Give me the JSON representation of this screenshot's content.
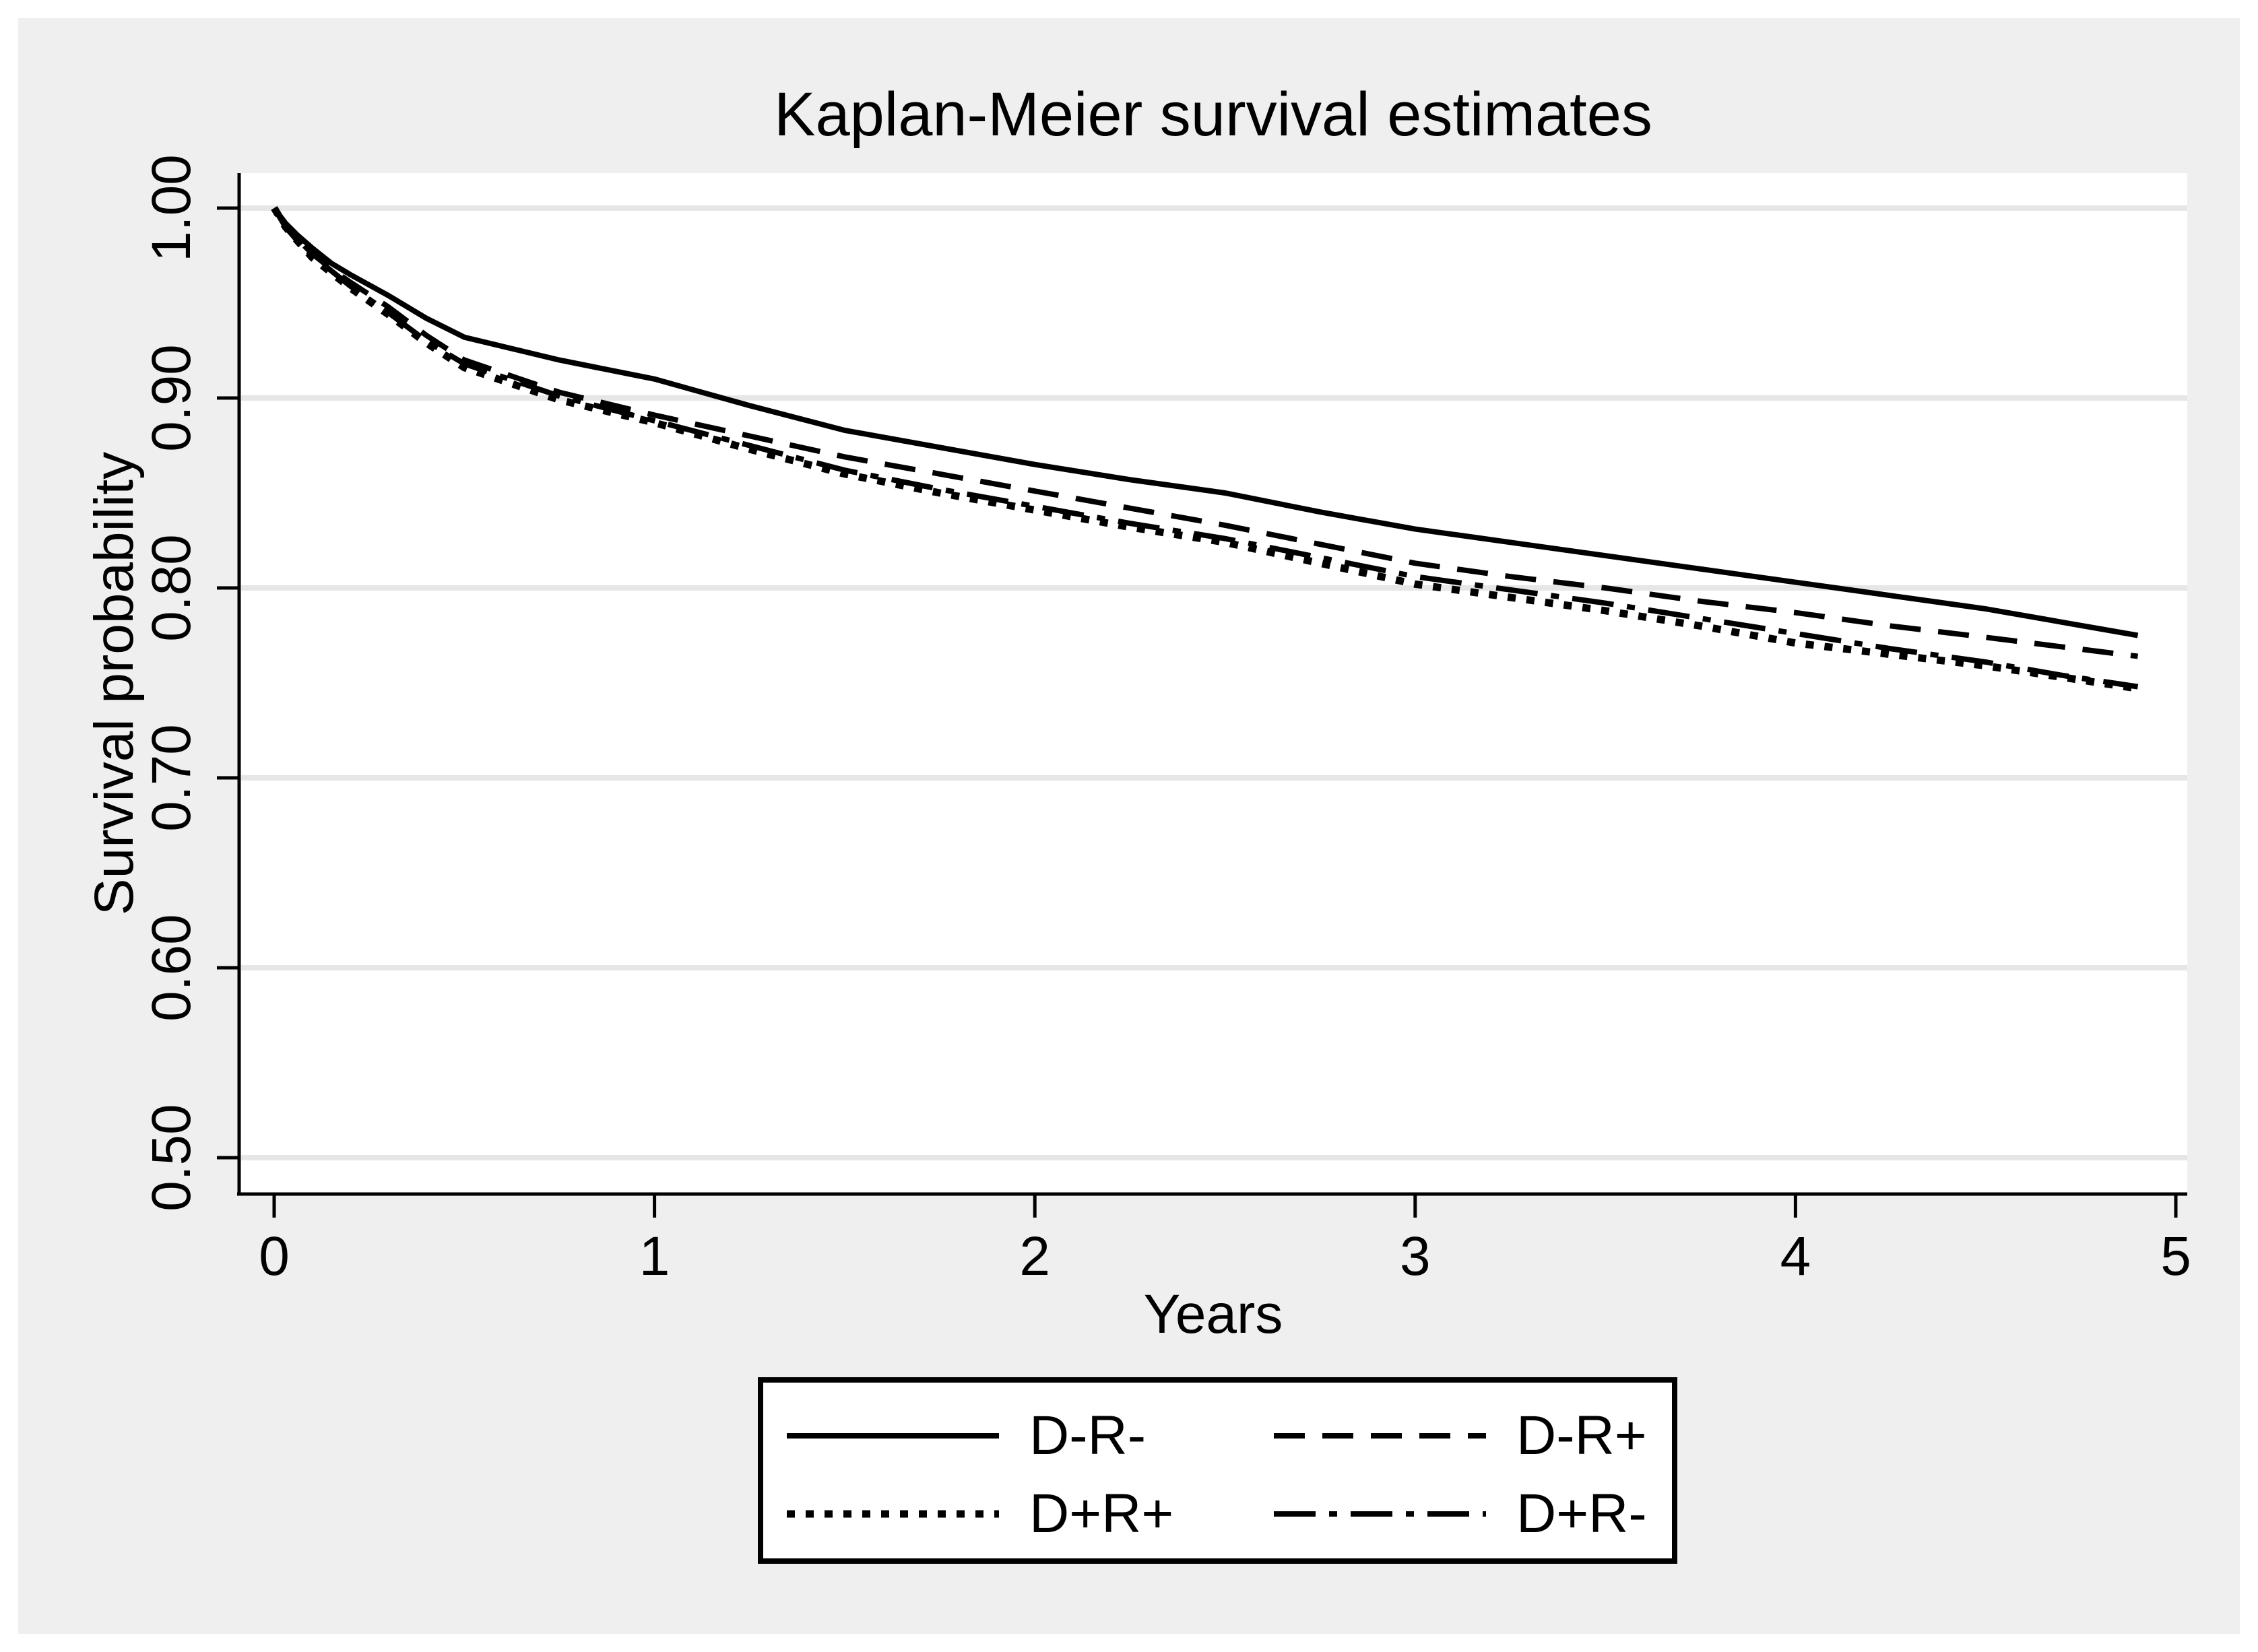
{
  "figure": {
    "title": "Kaplan-Meier survival estimates",
    "x_axis": {
      "label": "Years",
      "tick_labels": [
        "0",
        "1",
        "2",
        "3",
        "4",
        "5"
      ]
    },
    "y_axis": {
      "label": "Survival probability",
      "tick_labels": [
        "0.50",
        "0.60",
        "0.70",
        "0.80",
        "0.90",
        "1.00"
      ]
    },
    "colors": {
      "background": "#efefef",
      "plot_background": "#ffffff",
      "gridline": "#e6e6e6",
      "line": "#000000",
      "text": "#000000"
    }
  },
  "legend": {
    "entries": [
      {
        "label": "D-R-",
        "style": "solid"
      },
      {
        "label": "D-R+",
        "style": "dashed"
      },
      {
        "label": "D+R+",
        "style": "dotted"
      },
      {
        "label": "D+R-",
        "style": "dash-dot"
      }
    ]
  },
  "chart_data": {
    "type": "line",
    "title": "Kaplan-Meier survival estimates",
    "xlabel": "Years",
    "ylabel": "Survival probability",
    "xlim": [
      0,
      5.03
    ],
    "ylim": [
      0.5,
      1.0
    ],
    "x_ticks": [
      0,
      1,
      2,
      3,
      4,
      5
    ],
    "y_ticks": [
      0.5,
      0.6,
      0.7,
      0.8,
      0.9,
      1.0
    ],
    "grid": "horizontal gridlines at y ticks",
    "legend_position": "bottom",
    "x": [
      0,
      0.03,
      0.06,
      0.1,
      0.15,
      0.2,
      0.3,
      0.4,
      0.5,
      0.75,
      1.0,
      1.25,
      1.5,
      1.75,
      2.0,
      2.25,
      2.5,
      2.75,
      3.0,
      3.25,
      3.5,
      3.75,
      4.0,
      4.25,
      4.5,
      4.7,
      4.9
    ],
    "series": [
      {
        "name": "D-R-",
        "style": "solid",
        "values": [
          1.0,
          0.992,
          0.986,
          0.979,
          0.971,
          0.965,
          0.954,
          0.942,
          0.932,
          0.92,
          0.91,
          0.896,
          0.883,
          0.874,
          0.865,
          0.857,
          0.85,
          0.84,
          0.831,
          0.824,
          0.817,
          0.81,
          0.803,
          0.796,
          0.789,
          0.782,
          0.775
        ]
      },
      {
        "name": "D-R+",
        "style": "dashed",
        "values": [
          1.0,
          0.991,
          0.984,
          0.976,
          0.968,
          0.961,
          0.948,
          0.933,
          0.92,
          0.903,
          0.891,
          0.88,
          0.869,
          0.86,
          0.851,
          0.842,
          0.833,
          0.823,
          0.813,
          0.806,
          0.8,
          0.793,
          0.787,
          0.78,
          0.774,
          0.769,
          0.764
        ]
      },
      {
        "name": "D+R+",
        "style": "dotted",
        "values": [
          1.0,
          0.99,
          0.983,
          0.974,
          0.966,
          0.958,
          0.944,
          0.929,
          0.916,
          0.899,
          0.887,
          0.873,
          0.86,
          0.85,
          0.841,
          0.832,
          0.824,
          0.813,
          0.802,
          0.795,
          0.788,
          0.78,
          0.771,
          0.765,
          0.759,
          0.753,
          0.747
        ]
      },
      {
        "name": "D+R-",
        "style": "dash-dot",
        "values": [
          1.0,
          0.99,
          0.983,
          0.975,
          0.967,
          0.959,
          0.945,
          0.93,
          0.918,
          0.901,
          0.888,
          0.875,
          0.862,
          0.852,
          0.843,
          0.834,
          0.826,
          0.816,
          0.806,
          0.799,
          0.792,
          0.784,
          0.776,
          0.768,
          0.761,
          0.754,
          0.748
        ]
      }
    ]
  }
}
